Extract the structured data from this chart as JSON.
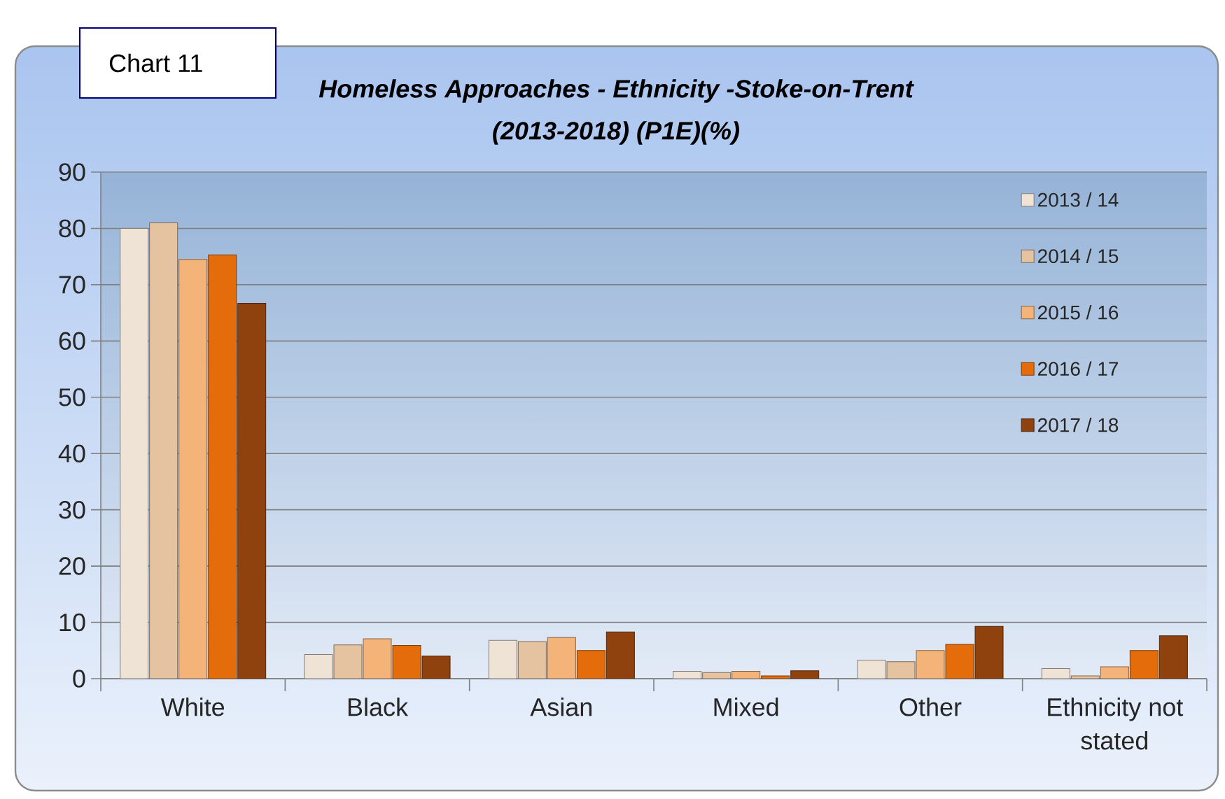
{
  "chart_data": {
    "type": "bar",
    "title": "Homeless Approaches - Ethnicity -Stoke-on-Trent (2013-2018) (P1E)(%)",
    "annotations": [
      "Chart 11"
    ],
    "categories": [
      "White",
      "Black",
      "Asian",
      "Mixed",
      "Other",
      "Ethnicity not stated"
    ],
    "series": [
      {
        "name": "2013 / 14",
        "color": "#efe3d6",
        "values": [
          80,
          4.3,
          6.8,
          1.3,
          3.3,
          1.8
        ]
      },
      {
        "name": "2014 / 15",
        "color": "#e6c3a0",
        "values": [
          81,
          6.0,
          6.6,
          1.1,
          3.0,
          0.5
        ]
      },
      {
        "name": "2015 / 16",
        "color": "#f4b479",
        "values": [
          74.5,
          7.1,
          7.3,
          1.3,
          5.0,
          2.1
        ]
      },
      {
        "name": "2016 / 17",
        "color": "#e46c0a",
        "values": [
          75.3,
          5.9,
          5.0,
          0.5,
          6.1,
          5.0
        ]
      },
      {
        "name": "2017 / 18",
        "color": "#90420e",
        "values": [
          66.7,
          4.0,
          8.3,
          1.4,
          9.3,
          7.6
        ]
      }
    ],
    "ylim": [
      0,
      90
    ],
    "yticks": [
      0,
      10,
      20,
      30,
      40,
      50,
      60,
      70,
      80,
      90
    ],
    "grid": "y",
    "legend": "top right"
  }
}
